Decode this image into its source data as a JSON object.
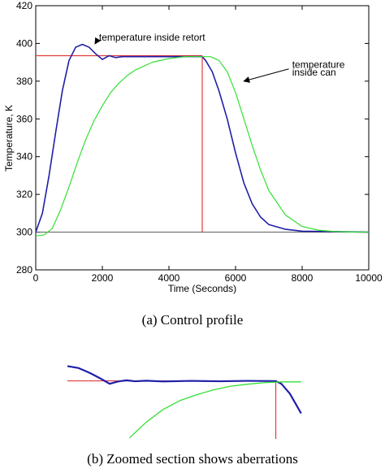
{
  "chart_data": [
    {
      "type": "line",
      "title": "",
      "xlabel": "Time (Seconds)",
      "ylabel": "Temperature, K",
      "xlim": [
        0,
        10000
      ],
      "ylim": [
        280,
        420
      ],
      "x_ticks": [
        "0",
        "2000",
        "4000",
        "6000",
        "8000",
        "10000"
      ],
      "y_ticks": [
        "280",
        "300",
        "320",
        "340",
        "360",
        "380",
        "400",
        "420"
      ],
      "grid": false,
      "colors": {
        "retort": "#1f1fa8",
        "can": "#33e033",
        "setpoint": "#e23b3b",
        "baseline": "#555555"
      },
      "series": [
        {
          "label": "temperature inside retort",
          "x": [
            0,
            200,
            400,
            600,
            800,
            1000,
            1200,
            1400,
            1600,
            1800,
            2000,
            2200,
            2400,
            2600,
            3000,
            3500,
            4000,
            4500,
            5000,
            5100,
            5300,
            5500,
            5750,
            6000,
            6250,
            6500,
            6750,
            7000,
            7500,
            8000,
            9000,
            10000
          ],
          "y": [
            300,
            310,
            330,
            353,
            375,
            391,
            398,
            399.5,
            398,
            394.5,
            391.5,
            393.5,
            392.5,
            393,
            393,
            393,
            393,
            393,
            393,
            391,
            385,
            375,
            360,
            342,
            326,
            315,
            308,
            304,
            301.5,
            300.5,
            300.3,
            300
          ]
        },
        {
          "label": "temperature inside can",
          "x": [
            0,
            250,
            500,
            750,
            1000,
            1250,
            1500,
            1750,
            2000,
            2250,
            2500,
            2750,
            3000,
            3500,
            4000,
            4500,
            5000,
            5250,
            5500,
            5750,
            6000,
            6250,
            6500,
            6750,
            7000,
            7500,
            8000,
            8500,
            9000,
            9500,
            10000
          ],
          "y": [
            298,
            298.5,
            302,
            312,
            324,
            337,
            349,
            359,
            367,
            374,
            379,
            383,
            386,
            390,
            392,
            393,
            393,
            393,
            391,
            385,
            374,
            360,
            346,
            333,
            322,
            309,
            303,
            301,
            300.3,
            300.1,
            300
          ]
        }
      ],
      "setpoint": {
        "temperature": 393.5,
        "until_time": 5000
      },
      "baseline": {
        "temperature": 300
      },
      "annotations": [
        {
          "text": "temperature inside retort",
          "at": [
            1900,
            401.5
          ]
        },
        {
          "text": "temperature",
          "at": [
            7700,
            387
          ]
        },
        {
          "text": "inside can",
          "at": [
            7700,
            383
          ]
        }
      ]
    },
    {
      "type": "line",
      "title": "",
      "description_visible": "zoomed section",
      "xlim": [
        1300,
        5800
      ],
      "ylim": [
        364,
        402
      ],
      "axes_visible": false,
      "series": [
        {
          "label": "retort (zoomed)",
          "x": [
            1300,
            1500,
            1700,
            1900,
            2050,
            2200,
            2350,
            2500,
            2700,
            3000,
            3500,
            4000,
            4500,
            5000,
            5100,
            5250,
            5450
          ],
          "y": [
            401,
            400,
            397.5,
            394.5,
            392,
            393.2,
            393.8,
            393.3,
            393.6,
            393.2,
            393.5,
            393.3,
            393.5,
            393.4,
            392,
            387,
            377
          ]
        },
        {
          "label": "can (zoomed)",
          "x": [
            2400,
            2700,
            3000,
            3300,
            3600,
            3900,
            4200,
            4500,
            4800,
            5100,
            5450
          ],
          "y": [
            364.5,
            372.5,
            379,
            383.5,
            386.5,
            389,
            390.8,
            391.8,
            392.6,
            393,
            393
          ]
        }
      ],
      "setpoint": {
        "temperature": 393.5,
        "until_time": 5000
      }
    }
  ],
  "captions": {
    "a": "(a)  Control profile",
    "b": "(b)  Zoomed section shows aberrations"
  }
}
